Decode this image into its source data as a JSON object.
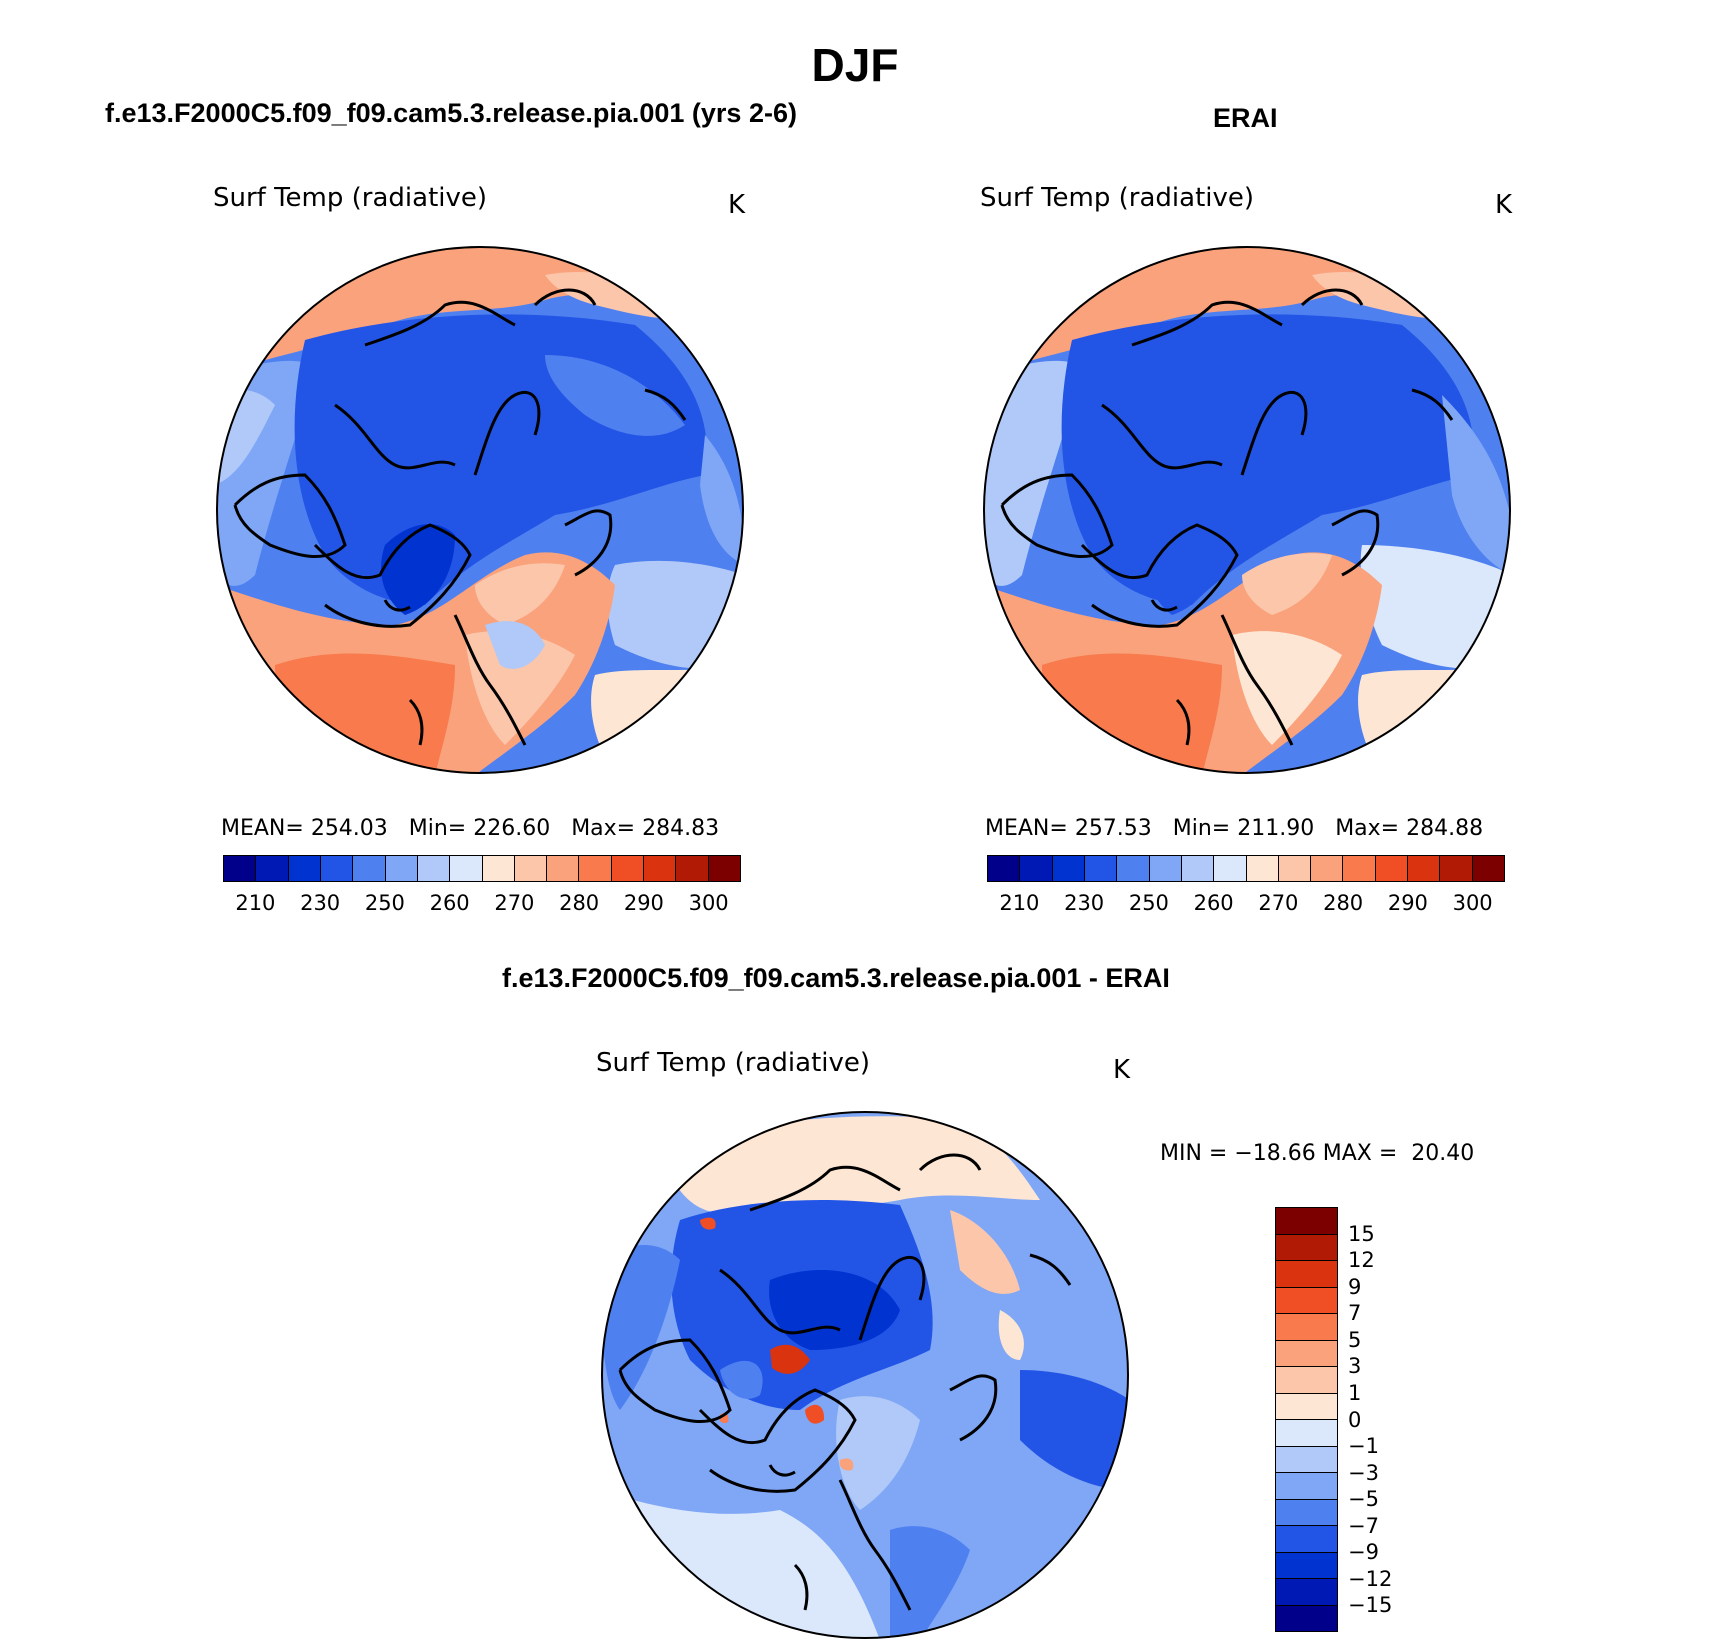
{
  "title": "DJF",
  "colors": {
    "abs": [
      "#00008b",
      "#0018b4",
      "#0033d0",
      "#2255e6",
      "#4f80f0",
      "#7fa7f6",
      "#b0c9f8",
      "#dbe8fb",
      "#fde6d4",
      "#fcc6ab",
      "#f9a27c",
      "#f87a4d",
      "#f04f25",
      "#d9330f",
      "#b11a05",
      "#7d0000"
    ],
    "diff": [
      "#00008b",
      "#0018b4",
      "#0033d0",
      "#2255e6",
      "#4f80f0",
      "#7fa7f6",
      "#b0c9f8",
      "#dbe8fb",
      "#fde6d4",
      "#fcc6ab",
      "#f9a27c",
      "#f87a4d",
      "#f04f25",
      "#d9330f",
      "#b11a05",
      "#7d0000"
    ]
  },
  "panels": {
    "model": {
      "header": "f.e13.F2000C5.f09_f09.cam5.3.release.pia.001 (yrs 2-6)",
      "variable": "Surf Temp (radiative)",
      "units": "K",
      "stats": "MEAN= 254.03   Min= 226.60   Max= 284.83",
      "colorbar_ticks": [
        "210",
        "230",
        "250",
        "260",
        "270",
        "280",
        "290",
        "300"
      ]
    },
    "obs": {
      "header": "ERAI",
      "variable": "Surf Temp (radiative)",
      "units": "K",
      "stats": "MEAN= 257.53   Min= 211.90   Max= 284.88",
      "colorbar_ticks": [
        "210",
        "230",
        "250",
        "260",
        "270",
        "280",
        "290",
        "300"
      ]
    },
    "diff": {
      "header": "f.e13.F2000C5.f09_f09.cam5.3.release.pia.001 - ERAI",
      "variable": "Surf Temp (radiative)",
      "units": "K",
      "stats": "MIN = −18.66 MAX =  20.40",
      "colorbar_ticks": [
        "15",
        "12",
        "9",
        "7",
        "5",
        "3",
        "1",
        "0",
        "−1",
        "−3",
        "−5",
        "−7",
        "−9",
        "−12",
        "−15"
      ]
    }
  }
}
